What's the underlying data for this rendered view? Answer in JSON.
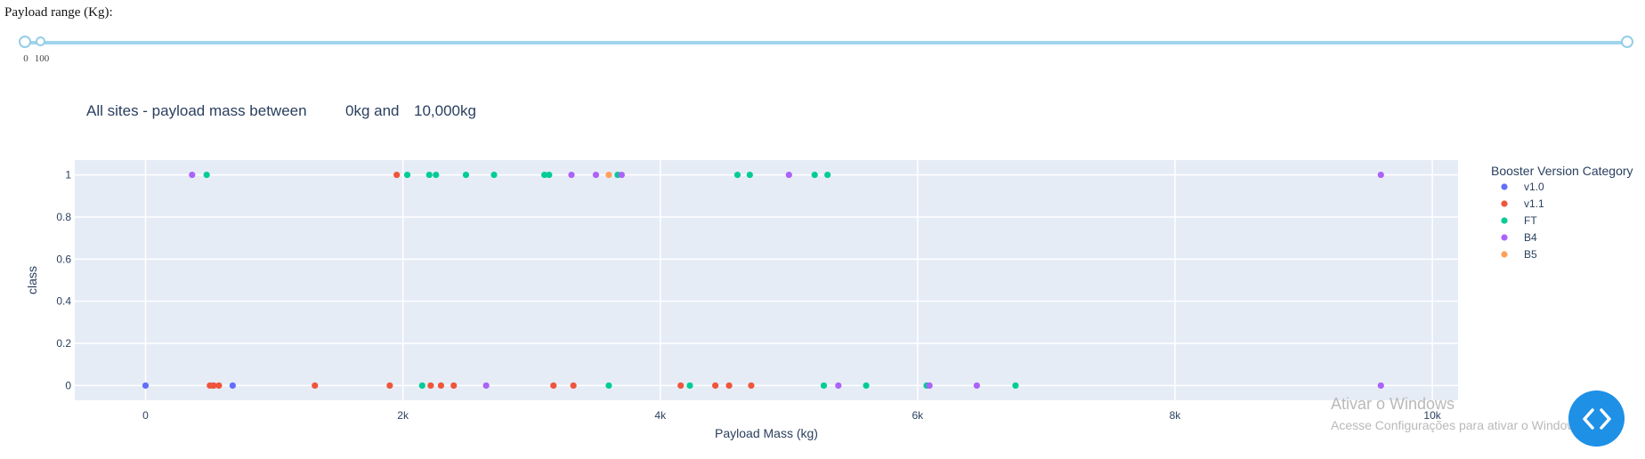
{
  "slider": {
    "label": "Payload range (Kg):",
    "min": 0,
    "max": 10000,
    "value_low": 0,
    "value_high": 10000,
    "marks": [
      {
        "value": 0,
        "label": "0"
      },
      {
        "value": 100,
        "label": "100"
      }
    ]
  },
  "chart_title": {
    "part1": "All sites - payload mass between",
    "low": "0kg and",
    "high": "10,000kg"
  },
  "watermark": {
    "line1": "Ativar o Windows",
    "line2": "Acesse Configurações para ativar o Windows."
  },
  "chart_data": {
    "type": "scatter",
    "title": "",
    "xlabel": "Payload Mass (kg)",
    "ylabel": "class",
    "xlim": [
      -550,
      10200
    ],
    "ylim": [
      -0.07,
      1.07
    ],
    "grid": true,
    "legend": {
      "title": "Booster Version Category",
      "placement": "right"
    },
    "x_ticks": [
      {
        "v": 0,
        "t": "0"
      },
      {
        "v": 2000,
        "t": "2k"
      },
      {
        "v": 4000,
        "t": "4k"
      },
      {
        "v": 6000,
        "t": "6k"
      },
      {
        "v": 8000,
        "t": "8k"
      },
      {
        "v": 10000,
        "t": "10k"
      }
    ],
    "y_ticks": [
      {
        "v": 0,
        "t": "0"
      },
      {
        "v": 0.2,
        "t": "0.2"
      },
      {
        "v": 0.4,
        "t": "0.4"
      },
      {
        "v": 0.6,
        "t": "0.6"
      },
      {
        "v": 0.8,
        "t": "0.8"
      },
      {
        "v": 1,
        "t": "1"
      }
    ],
    "series": [
      {
        "name": "v1.0",
        "color": "#636efa",
        "points": [
          [
            0,
            0
          ],
          [
            525,
            0
          ],
          [
            677,
            0
          ]
        ]
      },
      {
        "name": "v1.1",
        "color": "#ef553b",
        "points": [
          [
            500,
            0
          ],
          [
            530,
            0
          ],
          [
            570,
            0
          ],
          [
            1316,
            0
          ],
          [
            1898,
            0
          ],
          [
            1952,
            1
          ],
          [
            2216,
            0
          ],
          [
            2296,
            0
          ],
          [
            2395,
            0
          ],
          [
            3170,
            0
          ],
          [
            3325,
            0
          ],
          [
            4159,
            0
          ],
          [
            4428,
            0
          ],
          [
            4535,
            0
          ],
          [
            4707,
            0
          ]
        ]
      },
      {
        "name": "FT",
        "color": "#00cc96",
        "points": [
          [
            475,
            1
          ],
          [
            2034,
            1
          ],
          [
            2150,
            0
          ],
          [
            2205,
            1
          ],
          [
            2257,
            1
          ],
          [
            2490,
            1
          ],
          [
            2708,
            1
          ],
          [
            3100,
            1
          ],
          [
            3136,
            1
          ],
          [
            3600,
            0
          ],
          [
            3669,
            1
          ],
          [
            4230,
            0
          ],
          [
            4600,
            1
          ],
          [
            4696,
            1
          ],
          [
            5200,
            1
          ],
          [
            5271,
            0
          ],
          [
            5300,
            1
          ],
          [
            5600,
            0
          ],
          [
            6070,
            0
          ],
          [
            6761,
            0
          ]
        ]
      },
      {
        "name": "B4",
        "color": "#ab63fa",
        "points": [
          [
            362,
            1
          ],
          [
            2647,
            0
          ],
          [
            3310,
            1
          ],
          [
            3500,
            1
          ],
          [
            3700,
            1
          ],
          [
            5000,
            1
          ],
          [
            5384,
            0
          ],
          [
            6092,
            0
          ],
          [
            6460,
            0
          ],
          [
            9600,
            1
          ],
          [
            9600,
            0
          ]
        ]
      },
      {
        "name": "B5",
        "color": "#ffa15a",
        "points": [
          [
            3600,
            1
          ]
        ]
      }
    ]
  }
}
